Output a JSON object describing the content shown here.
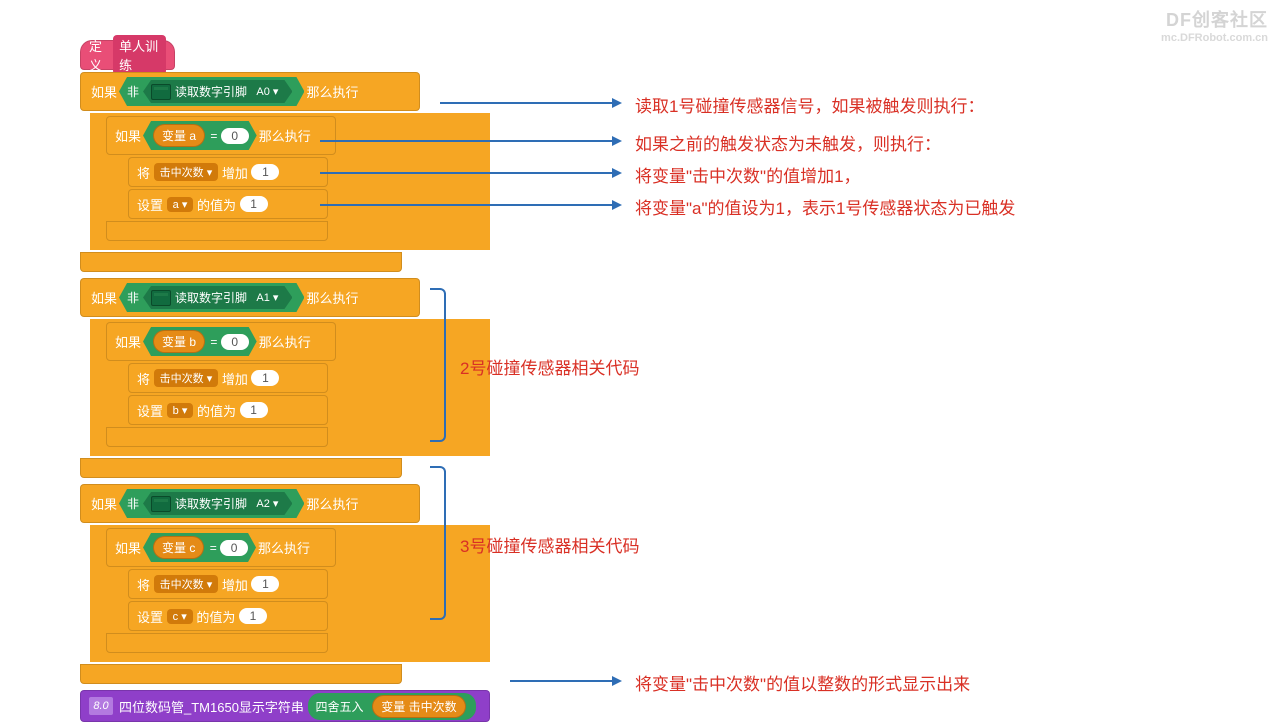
{
  "watermark": {
    "line1": "DF创客社区",
    "line2": "mc.DFRobot.com.cn"
  },
  "colors": {
    "hat": "#e94e77",
    "control": "#f6a623",
    "operator": "#2e9e5b",
    "sensor": "#0f9d8f",
    "var": "#e58b17",
    "purple": "#8f3fc9",
    "annot": "#d93025",
    "arrow": "#2e6db5"
  },
  "hat": {
    "define": "定义",
    "name": "单人训练"
  },
  "labels": {
    "if": "如果",
    "then": "那么执行",
    "not": "非",
    "read_pin": "读取数字引脚",
    "var": "变量",
    "eq": "=",
    "set_prefix": "将",
    "inc": "增加",
    "set": "设置",
    "valueIs": "的值为",
    "round": "四舍五入"
  },
  "sections": [
    {
      "pin": "A0",
      "varname": "a",
      "zero": "0",
      "one": "1",
      "counter": "击中次数"
    },
    {
      "pin": "A1",
      "varname": "b",
      "zero": "0",
      "one": "1",
      "counter": "击中次数"
    },
    {
      "pin": "A2",
      "varname": "c",
      "zero": "0",
      "one": "1",
      "counter": "击中次数"
    }
  ],
  "display": {
    "icon": "8.0",
    "label": "四位数码管_TM1650显示字符串",
    "var": "击中次数"
  },
  "annotations": {
    "a1": "读取1号碰撞传感器信号，如果被触发则执行：",
    "a2": "如果之前的触发状态为未触发，则执行：",
    "a3": "将变量\"击中次数\"的值增加1，",
    "a4": "将变量\"a\"的值设为1，表示1号传感器状态为已触发",
    "b2": "2号碰撞传感器相关代码",
    "b3": "3号碰撞传感器相关代码",
    "d1": "将变量\"击中次数\"的值以整数的形式显示出来"
  }
}
